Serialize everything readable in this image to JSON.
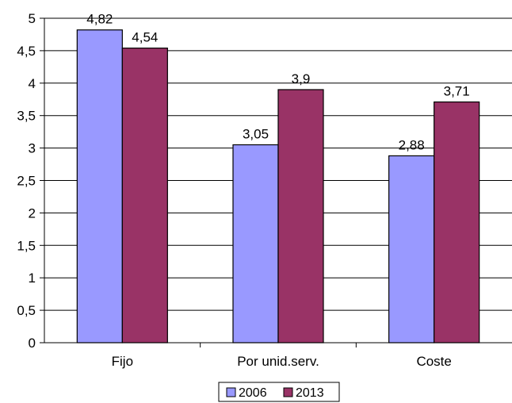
{
  "chart_data": {
    "type": "bar",
    "title": "",
    "xlabel": "",
    "ylabel": "",
    "categories": [
      "Fijo",
      "Por unid.serv.",
      "Coste"
    ],
    "series": [
      {
        "name": "2006",
        "values": [
          4.82,
          3.05,
          2.88
        ],
        "labels": [
          "4,82",
          "3,05",
          "2,88"
        ],
        "color": "#9999ff"
      },
      {
        "name": "2013",
        "values": [
          4.54,
          3.9,
          3.71
        ],
        "labels": [
          "4,54",
          "3,9",
          "3,71"
        ],
        "color": "#993366"
      }
    ],
    "ylim": [
      0,
      5
    ],
    "yticks": [
      0,
      0.5,
      1,
      1.5,
      2,
      2.5,
      3,
      3.5,
      4,
      4.5,
      5
    ],
    "ytick_labels": [
      "0",
      "0,5",
      "1",
      "1,5",
      "2",
      "2,5",
      "3",
      "3,5",
      "4",
      "4,5",
      "5"
    ],
    "grid": true,
    "legend": "bottom"
  }
}
